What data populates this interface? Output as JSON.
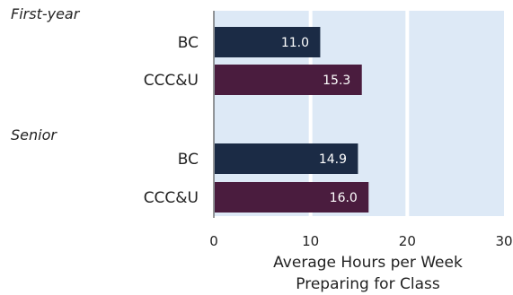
{
  "chart_data": {
    "type": "bar",
    "orientation": "horizontal",
    "groups": [
      {
        "label": "First-year",
        "items": [
          {
            "category": "BC",
            "value": 11.0,
            "label": "11.0",
            "color": "#1b2b45"
          },
          {
            "category": "CCC&U",
            "value": 15.3,
            "label": "15.3",
            "color": "#4a1c3e"
          }
        ]
      },
      {
        "label": "Senior",
        "items": [
          {
            "category": "BC",
            "value": 14.9,
            "label": "14.9",
            "color": "#1b2b45"
          },
          {
            "category": "CCC&U",
            "value": 16.0,
            "label": "16.0",
            "color": "#4a1c3e"
          }
        ]
      }
    ],
    "xlim": [
      0,
      30
    ],
    "xticks": [
      "0",
      "10",
      "20",
      "30"
    ],
    "xlabel_lines": [
      "Average Hours per Week",
      "Preparing for Class"
    ],
    "plot_background": "#dde9f6",
    "gridline_color": "#ffffff",
    "grid": true
  }
}
